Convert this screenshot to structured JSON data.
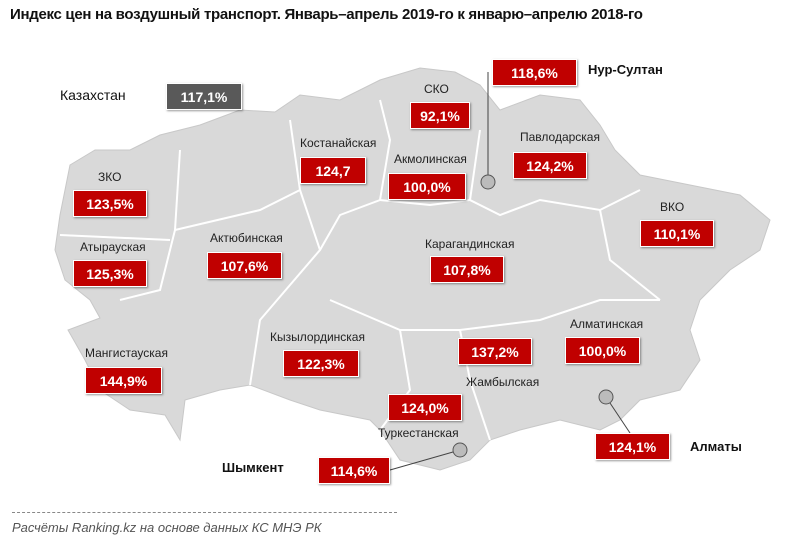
{
  "title": "Индекс цен на воздушный транспорт. Январь–апрель 2019-го  к январю–апрелю 2018-го",
  "country": {
    "label": "Казахстан",
    "value": "117,1%"
  },
  "regions": [
    {
      "name": "СКО",
      "value": "92,1%"
    },
    {
      "name": "Костанайская",
      "value": "124,7"
    },
    {
      "name": "Акмолинская",
      "value": "100,0%"
    },
    {
      "name": "Павлодарская",
      "value": "124,2%"
    },
    {
      "name": "ЗКО",
      "value": "123,5%"
    },
    {
      "name": "Атырауская",
      "value": "125,3%"
    },
    {
      "name": "Актюбинская",
      "value": "107,6%"
    },
    {
      "name": "Карагандинская",
      "value": "107,8%"
    },
    {
      "name": "ВКО",
      "value": "110,1%"
    },
    {
      "name": "Мангистауская",
      "value": "144,9%"
    },
    {
      "name": "Кызылординская",
      "value": "122,3%"
    },
    {
      "name": "Алматинская",
      "value": "100,0%"
    },
    {
      "name": "Жамбылская",
      "value": "124,0%"
    },
    {
      "name": "Туркестанская",
      "value": ""
    }
  ],
  "unlabeled_value": "137,2%",
  "cities": [
    {
      "name": "Нур-Султан",
      "value": "118,6%"
    },
    {
      "name": "Шымкент",
      "value": "114,6%"
    },
    {
      "name": "Алматы",
      "value": "124,1%"
    }
  ],
  "source": "Расчёты Ranking.kz на основе данных  КС МНЭ РК",
  "colors": {
    "value_box": "#c00000",
    "country_box": "#595959",
    "map_fill": "#d9d9d9"
  }
}
